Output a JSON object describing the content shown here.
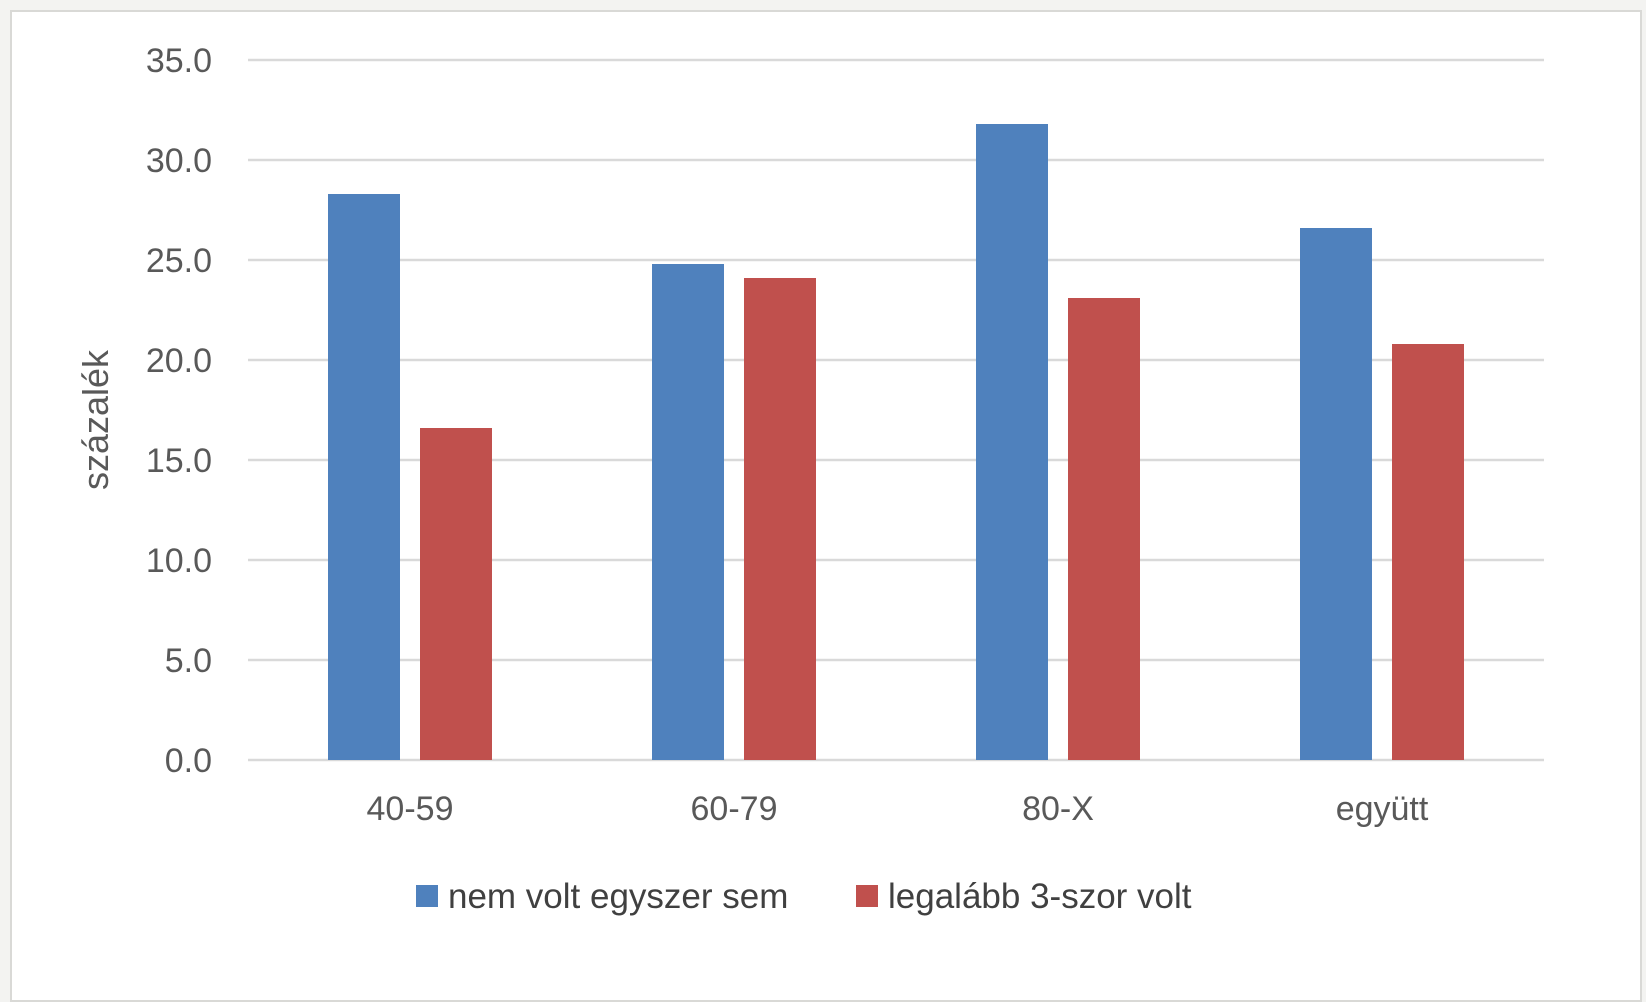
{
  "chart_data": {
    "type": "bar",
    "categories": [
      "40-59",
      "60-79",
      "80-X",
      "együtt"
    ],
    "series": [
      {
        "name": "nem volt egyszer sem",
        "color": "#4f81bd",
        "values": [
          28.3,
          24.8,
          31.8,
          26.6
        ]
      },
      {
        "name": "legalább 3-szor volt",
        "color": "#c0504d",
        "values": [
          16.6,
          24.1,
          23.1,
          20.8
        ]
      }
    ],
    "ylabel": "százalék",
    "xlabel": "",
    "ylim": [
      0,
      35
    ],
    "yticks": [
      "0.0",
      "5.0",
      "10.0",
      "15.0",
      "20.0",
      "25.0",
      "30.0",
      "35.0"
    ],
    "grid": true,
    "legend_position": "bottom"
  }
}
